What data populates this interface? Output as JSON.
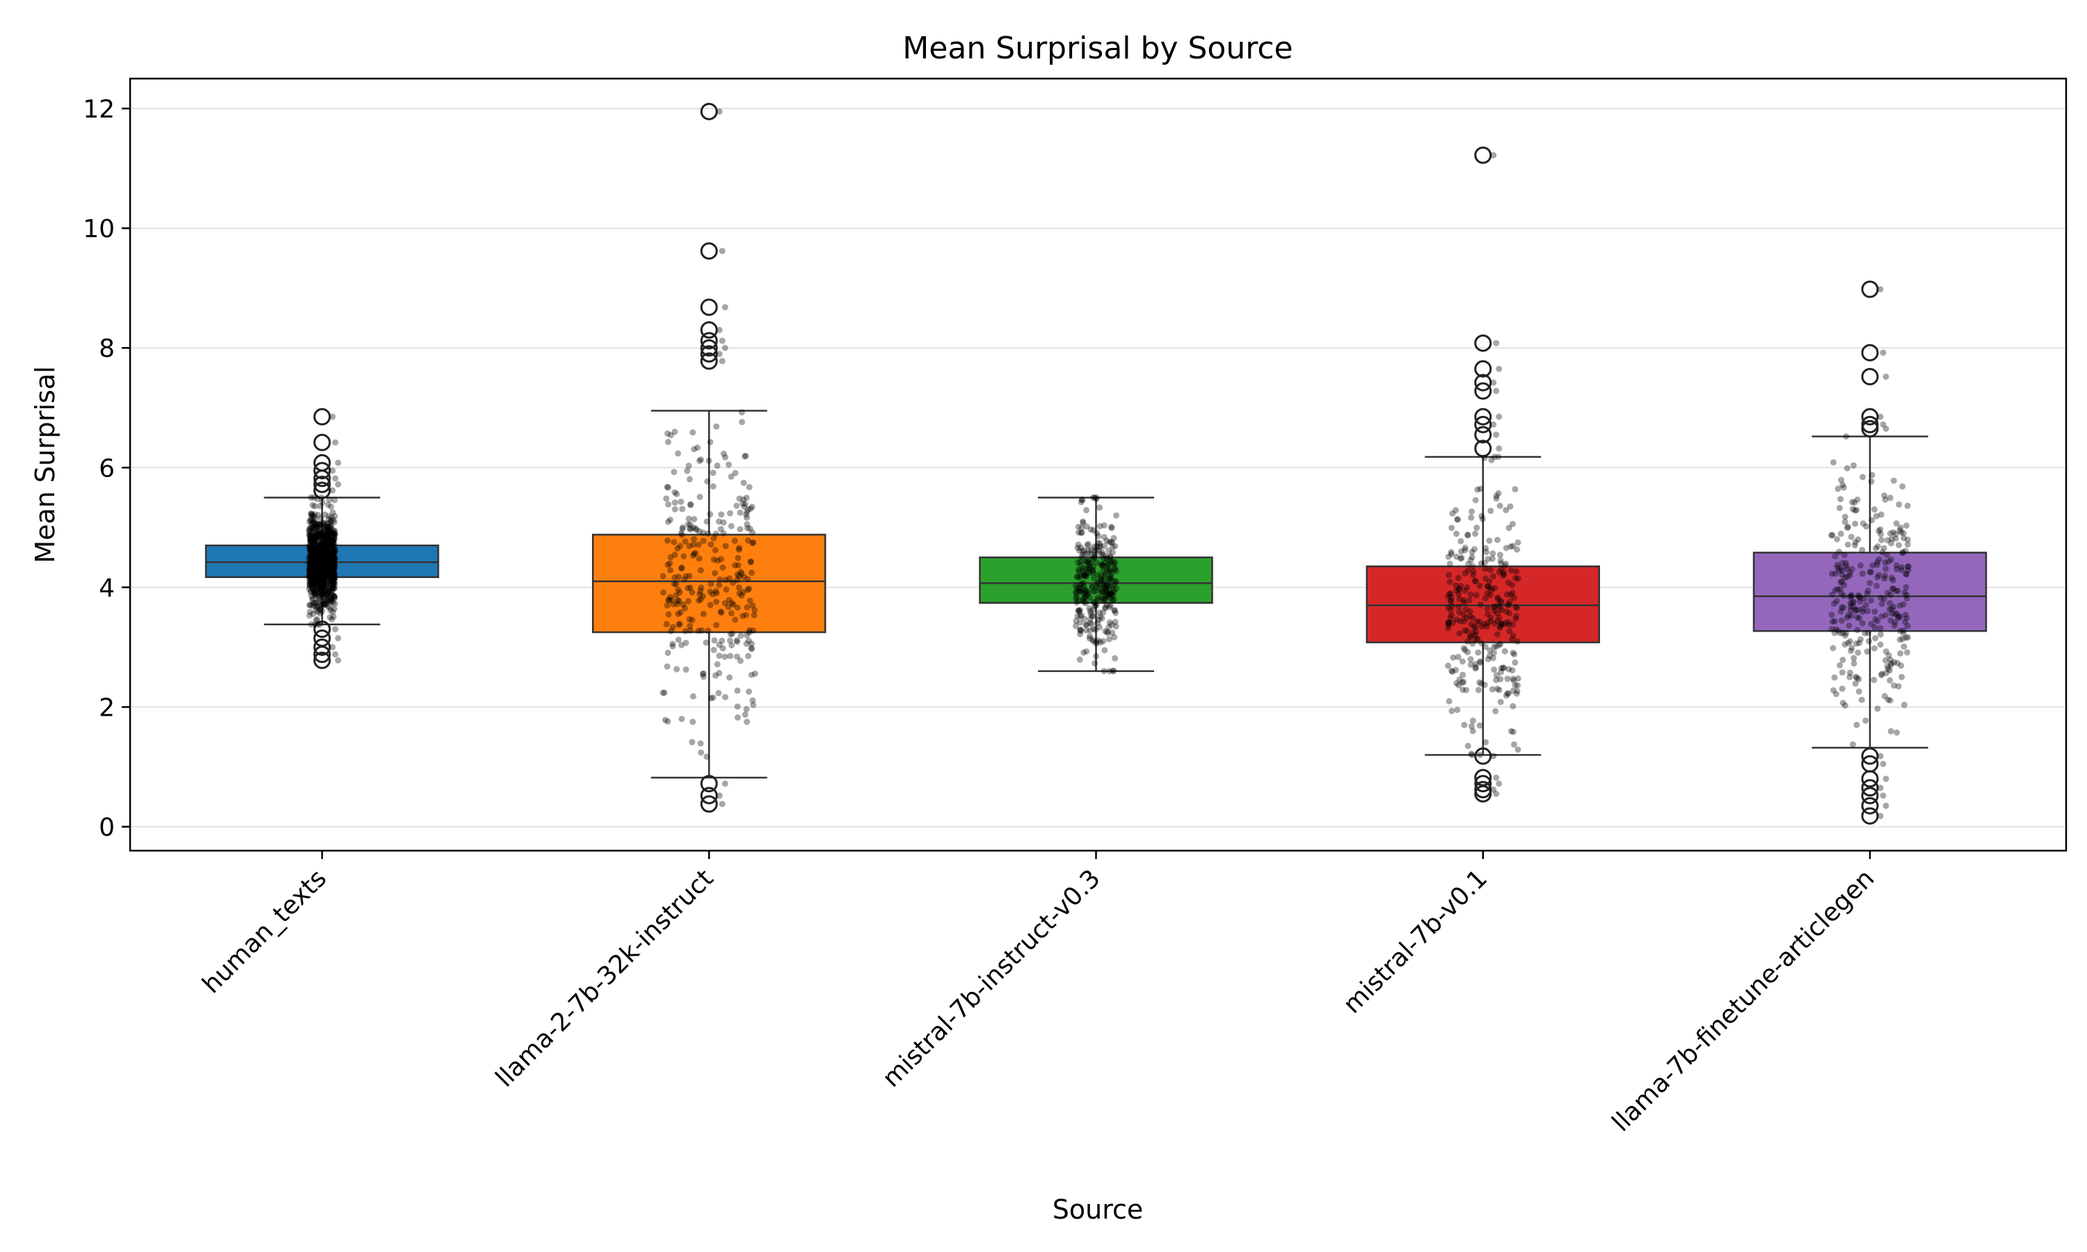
{
  "chart_data": {
    "type": "box",
    "title": "Mean Surprisal by Source",
    "xlabel": "Source",
    "ylabel": "Mean Surprisal",
    "ylim": [
      -0.4,
      12.5
    ],
    "yticks": [
      0,
      2,
      4,
      6,
      8,
      10,
      12
    ],
    "grid": "horizontal",
    "legend": "none",
    "overlay": "jittered individual points",
    "categories": [
      "human_texts",
      "llama-2-7b-32k-instruct",
      "mistral-7b-instruct-v0.3",
      "mistral-7b-v0.1",
      "llama-7b-finetune-articlegen"
    ],
    "series": [
      {
        "category": "human_texts",
        "color": "#1f77b4",
        "q1": 4.17,
        "median": 4.42,
        "q3": 4.7,
        "whisker_low": 3.38,
        "whisker_high": 5.5,
        "outliers": [
          6.85,
          6.42,
          6.08,
          5.95,
          5.82,
          5.72,
          5.62,
          3.3,
          3.15,
          3.0,
          2.88,
          2.78
        ],
        "points_n": 1000,
        "points_spread": 0.35
      },
      {
        "category": "llama-2-7b-32k-instruct",
        "color": "#ff7f0e",
        "q1": 3.25,
        "median": 4.1,
        "q3": 4.88,
        "whisker_low": 0.82,
        "whisker_high": 6.95,
        "outliers": [
          11.95,
          9.62,
          8.68,
          8.3,
          8.12,
          8.0,
          7.9,
          7.78,
          0.72,
          0.52,
          0.38
        ],
        "points_n": 300,
        "points_spread": 1.25
      },
      {
        "category": "mistral-7b-instruct-v0.3",
        "color": "#2ca02c",
        "q1": 3.74,
        "median": 4.07,
        "q3": 4.5,
        "whisker_low": 2.6,
        "whisker_high": 5.5,
        "outliers": [],
        "points_n": 300,
        "points_spread": 0.55
      },
      {
        "category": "mistral-7b-v0.1",
        "color": "#d62728",
        "q1": 3.08,
        "median": 3.7,
        "q3": 4.35,
        "whisker_low": 1.2,
        "whisker_high": 6.18,
        "outliers": [
          11.22,
          8.08,
          7.65,
          7.42,
          7.28,
          6.85,
          6.72,
          6.55,
          6.32,
          1.18,
          0.82,
          0.72,
          0.62,
          0.55
        ],
        "points_n": 300,
        "points_spread": 0.95
      },
      {
        "category": "llama-7b-finetune-articlegen",
        "color": "#9467bd",
        "q1": 3.27,
        "median": 3.85,
        "q3": 4.58,
        "whisker_low": 1.32,
        "whisker_high": 6.52,
        "outliers": [
          8.98,
          7.92,
          7.52,
          6.85,
          6.72,
          6.65,
          1.18,
          1.05,
          0.8,
          0.65,
          0.52,
          0.35,
          0.18
        ],
        "points_n": 300,
        "points_spread": 1.05
      }
    ]
  }
}
